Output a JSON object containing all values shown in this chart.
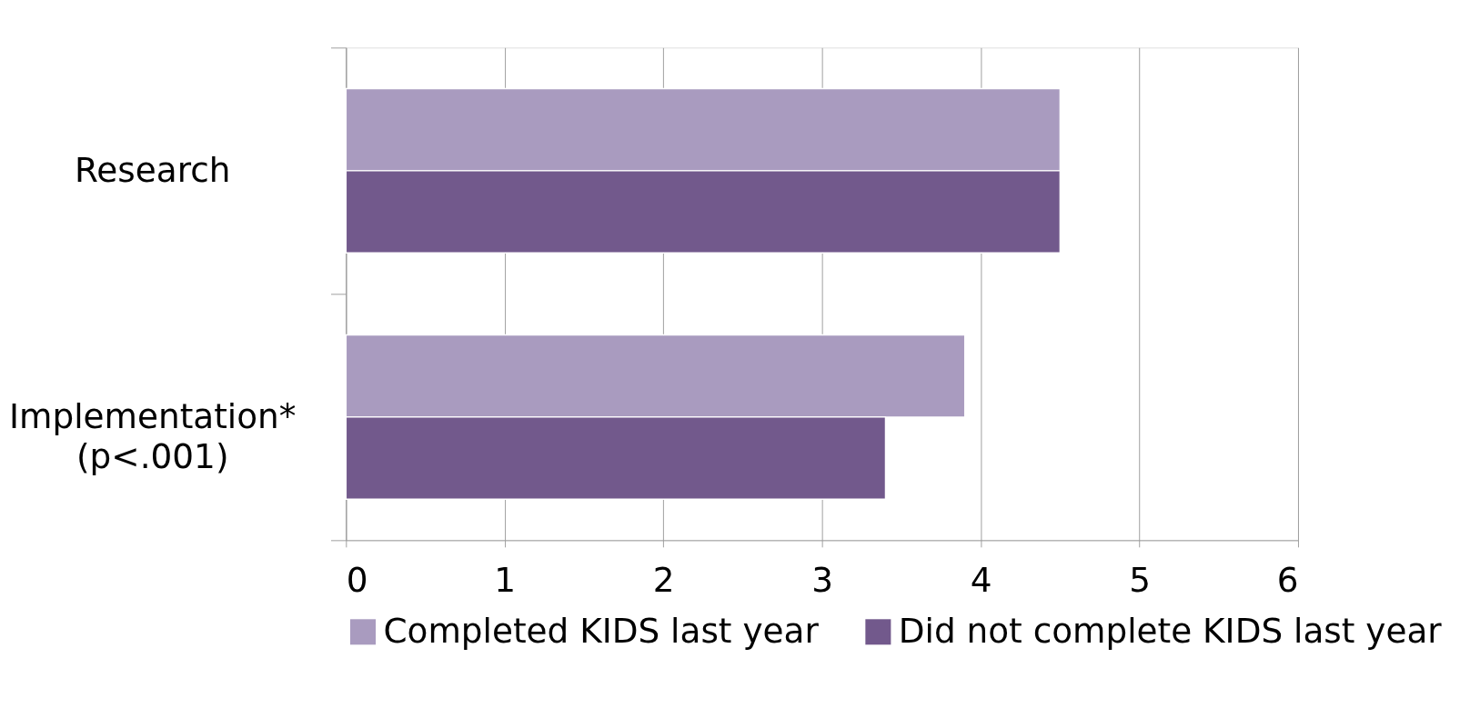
{
  "chart_data": {
    "type": "bar",
    "orientation": "horizontal",
    "categories": [
      "Research",
      "Implementation*\n(p<.001)"
    ],
    "series": [
      {
        "name": "Completed KIDS last year",
        "color": "#a99bbf",
        "values": [
          4.5,
          3.9
        ]
      },
      {
        "name": "Did not complete KIDS last year",
        "color": "#72598c",
        "values": [
          4.5,
          3.4
        ]
      }
    ],
    "xlim": [
      0,
      6
    ],
    "xticks": [
      0,
      1,
      2,
      3,
      4,
      5,
      6
    ],
    "grid": "x",
    "legend": "bottom"
  }
}
